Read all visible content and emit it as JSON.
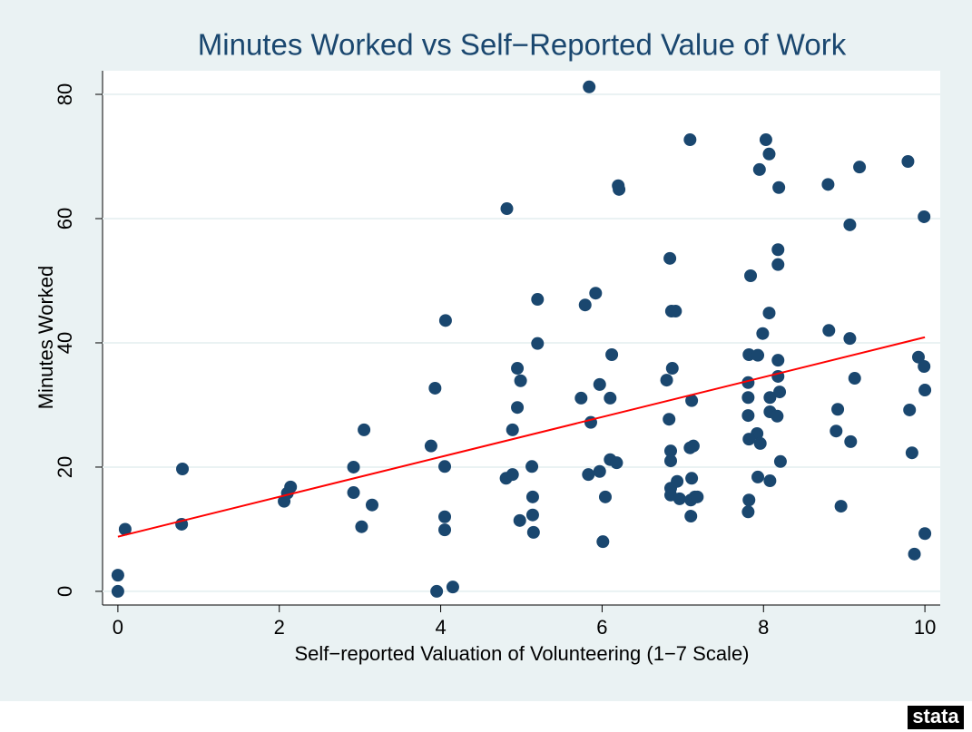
{
  "chart_data": {
    "type": "scatter",
    "title": "Minutes Worked vs Self−Reported Value of Work",
    "x_label": "Self−reported Valuation of Volunteering (1−7 Scale)",
    "y_label": "Minutes Worked",
    "logo": "stata",
    "xlim": [
      -0.19,
      10.19
    ],
    "ylim": [
      -2.2,
      83.8
    ],
    "xticks": [
      0,
      2,
      4,
      6,
      8,
      10
    ],
    "yticks": [
      0,
      20,
      40,
      60,
      80
    ],
    "grid": true,
    "series": [
      {
        "color": "#1a476f",
        "x": [
          0,
          0,
          0.09,
          0.79,
          0.8,
          2.06,
          2.1,
          2.14,
          2.92,
          2.92,
          3.02,
          3.05,
          3.15,
          3.88,
          3.93,
          3.95,
          4.05,
          4.05,
          4.05,
          4.06,
          4.15,
          4.82,
          4.81,
          4.89,
          4.89,
          4.95,
          4.95,
          4.99,
          4.98,
          5.2,
          5.2,
          5.13,
          5.14,
          5.14,
          5.15,
          5.84,
          5.74,
          5.79,
          5.92,
          5.86,
          5.83,
          5.97,
          5.97,
          6.01,
          6.04,
          6.1,
          6.12,
          6.1,
          6.18,
          6.2,
          6.21,
          6.84,
          6.86,
          6.91,
          6.8,
          6.87,
          6.83,
          6.85,
          6.85,
          6.85,
          6.85,
          6.93,
          6.96,
          7.09,
          7.11,
          7.09,
          7.13,
          7.11,
          7.1,
          7.15,
          7.1,
          7.18,
          8.03,
          8.07,
          7.95,
          8.19,
          7.84,
          8.18,
          8.18,
          8.07,
          7.99,
          7.82,
          7.93,
          8.18,
          7.81,
          8.18,
          8.2,
          8.08,
          7.81,
          7.81,
          8.08,
          8.17,
          7.92,
          7.82,
          7.96,
          7.93,
          8.08,
          8.21,
          7.82,
          7.81,
          8.8,
          9.19,
          9.79,
          9.07,
          9.99,
          8.81,
          9.07,
          9.92,
          9.99,
          9.13,
          10,
          8.92,
          9.81,
          8.9,
          9.08,
          9.84,
          8.96,
          10,
          9.87
        ],
        "values": [
          2.6,
          0,
          10,
          10.8,
          19.7,
          14.5,
          15.8,
          16.8,
          20,
          15.9,
          10.4,
          26,
          13.9,
          23.4,
          32.7,
          0,
          20.1,
          12,
          9.9,
          43.6,
          0.7,
          61.6,
          18.2,
          18.8,
          26,
          35.9,
          29.6,
          33.9,
          11.4,
          47,
          39.9,
          20.1,
          15.2,
          12.3,
          9.5,
          81.2,
          31.1,
          46.1,
          48,
          27.2,
          18.8,
          33.3,
          19.3,
          8,
          15.2,
          31.1,
          38.1,
          21.2,
          20.7,
          65.3,
          64.7,
          53.6,
          45.1,
          45.1,
          34,
          35.9,
          27.7,
          22.6,
          21,
          16.6,
          15.5,
          17.7,
          14.9,
          72.7,
          30.7,
          23.1,
          23.4,
          18.2,
          14.7,
          15.2,
          12.1,
          15.2,
          72.7,
          70.4,
          67.9,
          65,
          50.8,
          55,
          52.6,
          44.8,
          41.5,
          38.1,
          38,
          37.2,
          33.6,
          34.6,
          32.1,
          31.2,
          31.2,
          28.3,
          28.9,
          28.2,
          25.4,
          24.5,
          23.8,
          18.4,
          17.8,
          20.9,
          14.7,
          12.8,
          65.5,
          68.3,
          69.2,
          59,
          60.3,
          42,
          40.7,
          37.7,
          36.2,
          34.3,
          32.4,
          29.3,
          29.2,
          25.8,
          24.1,
          22.3,
          13.7,
          9.3,
          6
        ]
      }
    ],
    "fit_line": {
      "color": "#ff0000",
      "x": [
        0,
        10
      ],
      "values": [
        8.8,
        40.9
      ]
    }
  }
}
